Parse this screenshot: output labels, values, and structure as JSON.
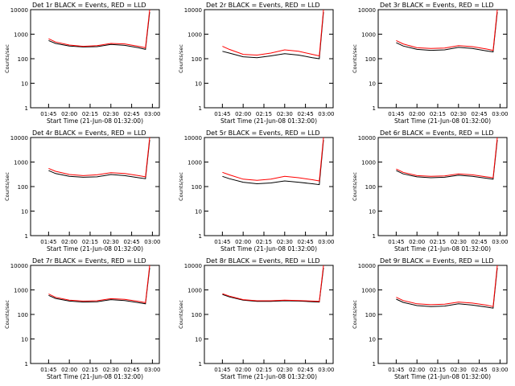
{
  "chart_data": [
    {
      "type": "line",
      "title": "Det 1r BLACK = Events, RED = LLD",
      "xlabel": "Start Time (21-Jun-08 01:32:00)",
      "ylabel": "Counts/sec",
      "yscale": "log",
      "ylim": [
        1,
        10000
      ],
      "x_ticks": [
        "01:45",
        "02:00",
        "02:15",
        "02:30",
        "02:45",
        "03:00"
      ],
      "y_ticks": [
        "1",
        "10",
        "100",
        "1000",
        "10000"
      ],
      "x": [
        "01:45",
        "01:50",
        "02:00",
        "02:10",
        "02:20",
        "02:30",
        "02:40",
        "02:50",
        "02:55",
        "02:58"
      ],
      "series": [
        {
          "color": "#000000",
          "values": [
            550,
            420,
            330,
            300,
            310,
            380,
            350,
            280,
            240,
            8000
          ]
        },
        {
          "color": "#ff0000",
          "values": [
            650,
            480,
            360,
            320,
            340,
            420,
            400,
            320,
            280,
            10000
          ]
        }
      ]
    },
    {
      "type": "line",
      "title": "Det 2r BLACK = Events, RED = LLD",
      "xlabel": "Start Time (21-Jun-08 01:32:00)",
      "ylabel": "Counts/sec",
      "yscale": "log",
      "ylim": [
        1,
        10000
      ],
      "x_ticks": [
        "01:45",
        "02:00",
        "02:15",
        "02:30",
        "02:45",
        "03:00"
      ],
      "y_ticks": [
        "1",
        "10",
        "100",
        "1000",
        "10000"
      ],
      "x": [
        "01:45",
        "01:50",
        "02:00",
        "02:10",
        "02:20",
        "02:30",
        "02:40",
        "02:50",
        "02:55",
        "02:58"
      ],
      "series": [
        {
          "color": "#000000",
          "values": [
            200,
            170,
            120,
            110,
            130,
            160,
            140,
            110,
            100,
            8000
          ]
        },
        {
          "color": "#ff0000",
          "values": [
            320,
            240,
            150,
            140,
            170,
            230,
            200,
            150,
            130,
            10000
          ]
        }
      ]
    },
    {
      "type": "line",
      "title": "Det 3r BLACK = Events, RED = LLD",
      "xlabel": "Start Time (21-Jun-08 01:32:00)",
      "ylabel": "Counts/sec",
      "yscale": "log",
      "ylim": [
        1,
        10000
      ],
      "x_ticks": [
        "01:45",
        "02:00",
        "02:15",
        "02:30",
        "02:45",
        "03:00"
      ],
      "y_ticks": [
        "1",
        "10",
        "100",
        "1000",
        "10000"
      ],
      "x": [
        "01:45",
        "01:50",
        "02:00",
        "02:10",
        "02:20",
        "02:30",
        "02:40",
        "02:50",
        "02:55",
        "02:58"
      ],
      "series": [
        {
          "color": "#000000",
          "values": [
            450,
            330,
            240,
            220,
            230,
            290,
            260,
            210,
            190,
            8000
          ]
        },
        {
          "color": "#ff0000",
          "values": [
            550,
            400,
            280,
            260,
            270,
            340,
            310,
            250,
            220,
            10000
          ]
        }
      ]
    },
    {
      "type": "line",
      "title": "Det 4r BLACK = Events, RED = LLD",
      "xlabel": "Start Time (21-Jun-08 01:32:00)",
      "ylabel": "Counts/sec",
      "yscale": "log",
      "ylim": [
        1,
        10000
      ],
      "x_ticks": [
        "01:45",
        "02:00",
        "02:15",
        "02:30",
        "02:45",
        "03:00"
      ],
      "y_ticks": [
        "1",
        "10",
        "100",
        "1000",
        "10000"
      ],
      "x": [
        "01:45",
        "01:50",
        "02:00",
        "02:10",
        "02:20",
        "02:30",
        "02:40",
        "02:50",
        "02:55",
        "02:58"
      ],
      "series": [
        {
          "color": "#000000",
          "values": [
            450,
            340,
            260,
            240,
            250,
            310,
            280,
            230,
            210,
            8000
          ]
        },
        {
          "color": "#ff0000",
          "values": [
            550,
            420,
            310,
            280,
            300,
            370,
            340,
            280,
            250,
            10000
          ]
        }
      ]
    },
    {
      "type": "line",
      "title": "Det 5r BLACK = Events, RED = LLD",
      "xlabel": "Start Time (21-Jun-08 01:32:00)",
      "ylabel": "Counts/sec",
      "yscale": "log",
      "ylim": [
        1,
        10000
      ],
      "x_ticks": [
        "01:45",
        "02:00",
        "02:15",
        "02:30",
        "02:45",
        "03:00"
      ],
      "y_ticks": [
        "1",
        "10",
        "100",
        "1000",
        "10000"
      ],
      "x": [
        "01:45",
        "01:50",
        "02:00",
        "02:10",
        "02:20",
        "02:30",
        "02:40",
        "02:50",
        "02:55",
        "02:58"
      ],
      "series": [
        {
          "color": "#000000",
          "values": [
            260,
            210,
            150,
            130,
            140,
            170,
            150,
            130,
            120,
            8000
          ]
        },
        {
          "color": "#ff0000",
          "values": [
            380,
            300,
            200,
            180,
            200,
            260,
            230,
            190,
            170,
            10000
          ]
        }
      ]
    },
    {
      "type": "line",
      "title": "Det 6r BLACK = Events, RED = LLD",
      "xlabel": "Start Time (21-Jun-08 01:32:00)",
      "ylabel": "Counts/sec",
      "yscale": "log",
      "ylim": [
        1,
        10000
      ],
      "x_ticks": [
        "01:45",
        "02:00",
        "02:15",
        "02:30",
        "02:45",
        "03:00"
      ],
      "y_ticks": [
        "1",
        "10",
        "100",
        "1000",
        "10000"
      ],
      "x": [
        "01:45",
        "01:50",
        "02:00",
        "02:10",
        "02:20",
        "02:30",
        "02:40",
        "02:50",
        "02:55",
        "02:58"
      ],
      "series": [
        {
          "color": "#000000",
          "values": [
            450,
            330,
            250,
            230,
            240,
            290,
            260,
            220,
            200,
            8000
          ]
        },
        {
          "color": "#ff0000",
          "values": [
            520,
            380,
            280,
            260,
            270,
            330,
            300,
            250,
            230,
            10000
          ]
        }
      ]
    },
    {
      "type": "line",
      "title": "Det 7r BLACK = Events, RED = LLD",
      "xlabel": "Start Time (21-Jun-08 01:32:00)",
      "ylabel": "Counts/sec",
      "yscale": "log",
      "ylim": [
        1,
        10000
      ],
      "x_ticks": [
        "01:45",
        "02:00",
        "02:15",
        "02:30",
        "02:45",
        "03:00"
      ],
      "y_ticks": [
        "1",
        "10",
        "100",
        "1000",
        "10000"
      ],
      "x": [
        "01:45",
        "01:50",
        "02:00",
        "02:10",
        "02:20",
        "02:30",
        "02:40",
        "02:50",
        "02:55",
        "02:58"
      ],
      "series": [
        {
          "color": "#000000",
          "values": [
            600,
            450,
            350,
            320,
            330,
            400,
            370,
            300,
            270,
            8000
          ]
        },
        {
          "color": "#ff0000",
          "values": [
            680,
            500,
            380,
            350,
            360,
            440,
            410,
            340,
            300,
            10000
          ]
        }
      ]
    },
    {
      "type": "line",
      "title": "Det 8r BLACK = Events, RED = LLD",
      "xlabel": "Start Time (21-Jun-08 01:32:00)",
      "ylabel": "Counts/sec",
      "yscale": "log",
      "ylim": [
        1,
        10000
      ],
      "x_ticks": [
        "01:45",
        "02:00",
        "02:15",
        "02:30",
        "02:45",
        "03:00"
      ],
      "y_ticks": [
        "1",
        "10",
        "100",
        "1000",
        "10000"
      ],
      "x": [
        "01:45",
        "01:50",
        "02:00",
        "02:10",
        "02:20",
        "02:30",
        "02:40",
        "02:50",
        "02:55",
        "02:58"
      ],
      "series": [
        {
          "color": "#000000",
          "values": [
            650,
            520,
            380,
            340,
            340,
            360,
            350,
            330,
            320,
            8000
          ]
        },
        {
          "color": "#ff0000",
          "values": [
            700,
            560,
            400,
            360,
            360,
            380,
            370,
            350,
            340,
            10000
          ]
        }
      ]
    },
    {
      "type": "line",
      "title": "Det 9r BLACK = Events, RED = LLD",
      "xlabel": "Start Time (21-Jun-08 01:32:00)",
      "ylabel": "Counts/sec",
      "yscale": "log",
      "ylim": [
        1,
        10000
      ],
      "x_ticks": [
        "01:45",
        "02:00",
        "02:15",
        "02:30",
        "02:45",
        "03:00"
      ],
      "y_ticks": [
        "1",
        "10",
        "100",
        "1000",
        "10000"
      ],
      "x": [
        "01:45",
        "01:50",
        "02:00",
        "02:10",
        "02:20",
        "02:30",
        "02:40",
        "02:50",
        "02:55",
        "02:58"
      ],
      "series": [
        {
          "color": "#000000",
          "values": [
            420,
            310,
            230,
            210,
            220,
            270,
            240,
            200,
            180,
            8000
          ]
        },
        {
          "color": "#ff0000",
          "values": [
            500,
            370,
            270,
            250,
            260,
            320,
            290,
            240,
            210,
            10000
          ]
        }
      ]
    }
  ]
}
